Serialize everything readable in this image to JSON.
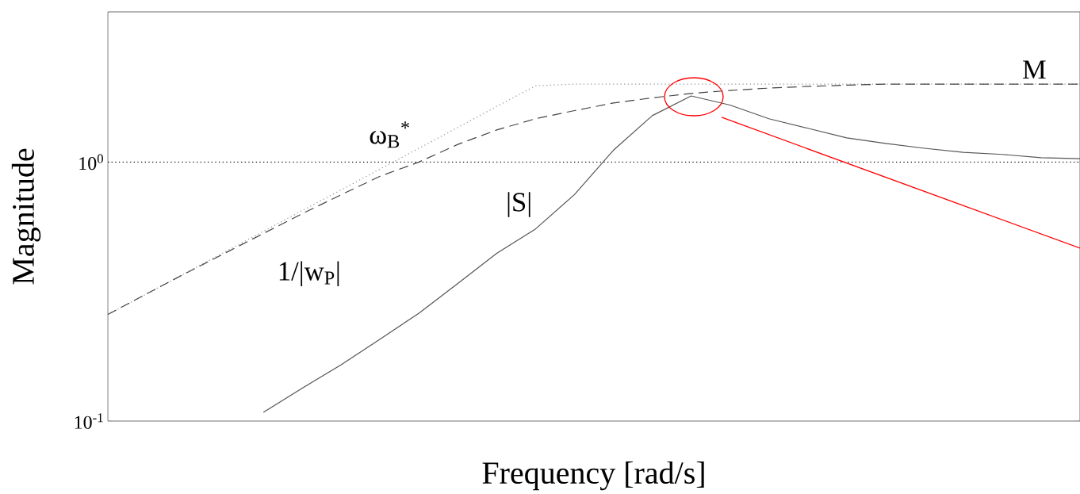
{
  "chart_data": {
    "type": "line",
    "xlabel": "Frequency [rad/s]",
    "ylabel": "Magnitude",
    "log": "y",
    "ylim": [
      0.1,
      3.8
    ],
    "yticks": [
      {
        "value": 0.1,
        "label": "10$^{-1}$"
      },
      {
        "value": 1,
        "label": "10$^{0}$"
      }
    ],
    "categories": [
      null,
      null,
      null,
      null,
      null,
      null,
      null,
      null,
      null,
      null,
      null,
      null,
      null,
      null,
      null,
      null,
      null,
      null,
      null,
      null,
      null,
      null,
      null,
      null,
      null,
      null
    ],
    "ref_lines": [
      {
        "axis": "y",
        "value": 1,
        "color": "#000000",
        "line_style": "dotted"
      }
    ],
    "annotations": [
      "ω$_{B}$$^{*}$",
      "M"
    ],
    "series": [
      {
        "color": "#999999",
        "line_style": "dotted",
        "values": [
          0.258,
          0.31,
          0.373,
          0.449,
          0.54,
          0.65,
          0.781,
          0.94,
          1.13,
          1.36,
          1.64,
          1.97,
          2.0,
          2.0,
          2.0,
          2.0,
          2.0,
          2.0,
          2.0,
          2.0,
          2.0,
          2.0,
          2.0,
          2.0,
          2.0,
          2.0
        ]
      },
      {
        "name": "1/|w$_{P}$|",
        "color": "#444444",
        "line_style": "dashed",
        "values": [
          0.258,
          0.31,
          0.372,
          0.444,
          0.53,
          0.632,
          0.748,
          0.881,
          1.0,
          1.17,
          1.33,
          1.47,
          1.58,
          1.69,
          1.77,
          1.84,
          1.89,
          1.93,
          1.96,
          1.98,
          2.0,
          2.0,
          2.0,
          2.0,
          2.0,
          2.0
        ]
      },
      {
        "name": "|S|",
        "color": "#555555",
        "line_style": "solid",
        "values": [
          null,
          null,
          null,
          null,
          0.108,
          0.134,
          0.165,
          0.207,
          0.261,
          0.34,
          0.444,
          0.552,
          0.749,
          1.11,
          1.51,
          1.8,
          1.66,
          1.47,
          1.35,
          1.24,
          1.18,
          1.13,
          1.09,
          1.07,
          1.04,
          1.03
        ]
      }
    ]
  }
}
